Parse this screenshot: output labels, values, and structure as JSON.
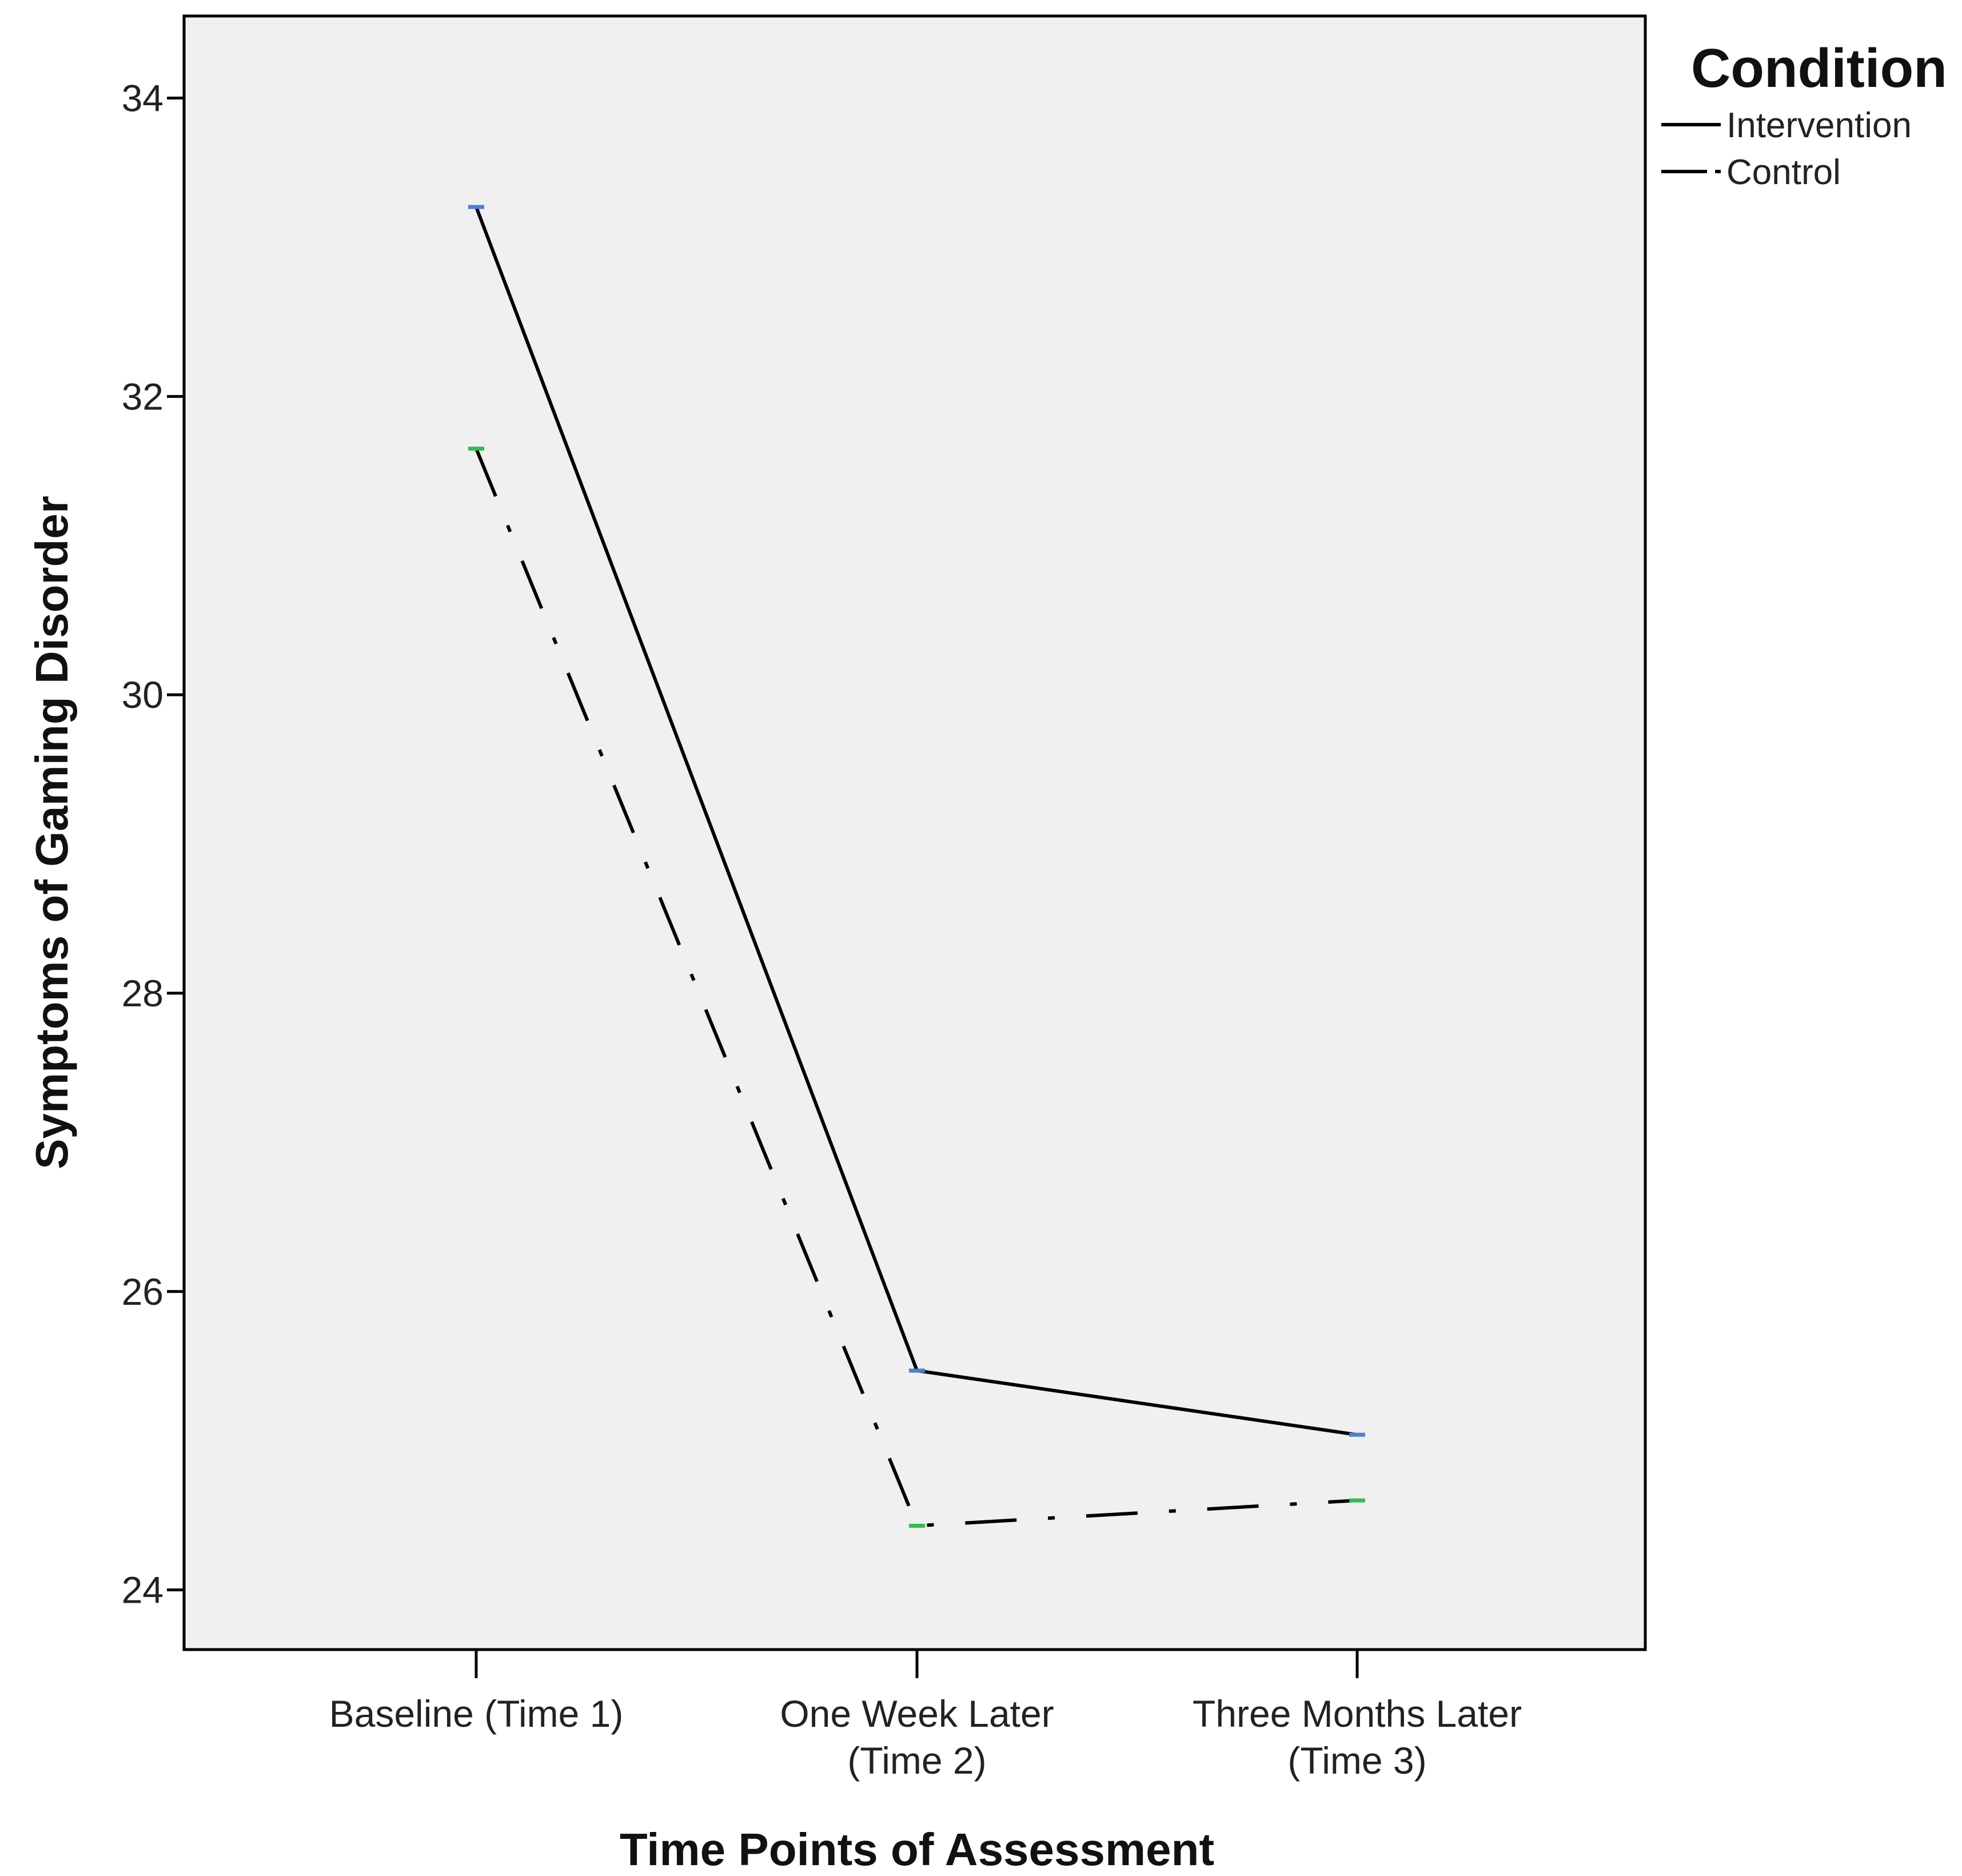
{
  "chart_data": {
    "type": "line",
    "title": "",
    "xlabel": "Time Points of Assessment",
    "ylabel": "Symptoms of Gaming Disorder",
    "categories": [
      [
        "Baseline (Time 1)"
      ],
      [
        "One Week Later",
        "(Time 2)"
      ],
      [
        "Three Months Later",
        "(Time 3)"
      ]
    ],
    "ylim": [
      23.6,
      34.55
    ],
    "yticks": [
      24,
      26,
      28,
      30,
      32,
      34
    ],
    "grid": false,
    "legend": {
      "title": "Condition",
      "position": "right"
    },
    "series": [
      {
        "name": "Intervention",
        "values": [
          33.27,
          25.47,
          25.04
        ],
        "line_style": "solid",
        "line_color": "#000000",
        "marker_color": "#4a7fd4"
      },
      {
        "name": "Control",
        "values": [
          31.65,
          24.43,
          24.6
        ],
        "line_style": "dash-dot",
        "line_color": "#000000",
        "marker_color": "#2fbf4f"
      }
    ],
    "colors": {
      "plot_background": "#f0f0f0",
      "axis": "#000000"
    }
  }
}
